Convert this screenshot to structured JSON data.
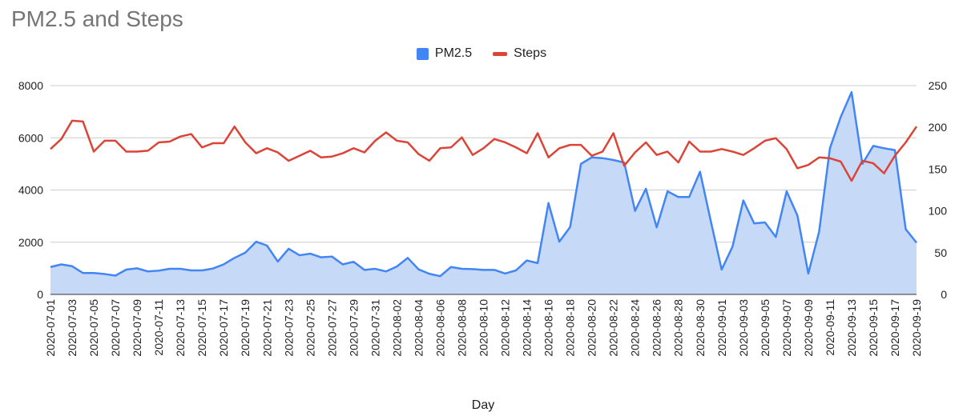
{
  "chart_data": {
    "type": "area+line",
    "title": "PM2.5 and Steps",
    "xlabel": "Day",
    "left_axis": {
      "min": 0,
      "max": 8000,
      "ticks": [
        0,
        2000,
        4000,
        6000,
        8000
      ]
    },
    "right_axis": {
      "min": 0,
      "max": 250,
      "ticks": [
        0,
        50,
        100,
        150,
        200,
        250
      ]
    },
    "grid": true,
    "legend_position": "top",
    "x": [
      "2020-07-01",
      "2020-07-02",
      "2020-07-03",
      "2020-07-04",
      "2020-07-05",
      "2020-07-06",
      "2020-07-07",
      "2020-07-08",
      "2020-07-09",
      "2020-07-10",
      "2020-07-11",
      "2020-07-12",
      "2020-07-13",
      "2020-07-14",
      "2020-07-15",
      "2020-07-16",
      "2020-07-17",
      "2020-07-18",
      "2020-07-19",
      "2020-07-20",
      "2020-07-21",
      "2020-07-22",
      "2020-07-23",
      "2020-07-24",
      "2020-07-25",
      "2020-07-26",
      "2020-07-27",
      "2020-07-28",
      "2020-07-29",
      "2020-07-30",
      "2020-07-31",
      "2020-08-01",
      "2020-08-02",
      "2020-08-03",
      "2020-08-04",
      "2020-08-05",
      "2020-08-06",
      "2020-08-07",
      "2020-08-08",
      "2020-08-09",
      "2020-08-10",
      "2020-08-11",
      "2020-08-12",
      "2020-08-13",
      "2020-08-14",
      "2020-08-15",
      "2020-08-16",
      "2020-08-17",
      "2020-08-18",
      "2020-08-19",
      "2020-08-20",
      "2020-08-21",
      "2020-08-22",
      "2020-08-23",
      "2020-08-24",
      "2020-08-25",
      "2020-08-26",
      "2020-08-27",
      "2020-08-28",
      "2020-08-29",
      "2020-08-30",
      "2020-08-31",
      "2020-09-01",
      "2020-09-02",
      "2020-09-03",
      "2020-09-04",
      "2020-09-05",
      "2020-09-06",
      "2020-09-07",
      "2020-09-08",
      "2020-09-09",
      "2020-09-10",
      "2020-09-11",
      "2020-09-12",
      "2020-09-13",
      "2020-09-14",
      "2020-09-15",
      "2020-09-16",
      "2020-09-17",
      "2020-09-18",
      "2020-09-19"
    ],
    "x_tick_labels": [
      "2020-07-01",
      "2020-07-03",
      "2020-07-05",
      "2020-07-07",
      "2020-07-09",
      "2020-07-11",
      "2020-07-13",
      "2020-07-15",
      "2020-07-17",
      "2020-07-19",
      "2020-07-21",
      "2020-07-23",
      "2020-07-25",
      "2020-07-27",
      "2020-07-29",
      "2020-07-31",
      "2020-08-02",
      "2020-08-04",
      "2020-08-06",
      "2020-08-08",
      "2020-08-10",
      "2020-08-12",
      "2020-08-14",
      "2020-08-16",
      "2020-08-18",
      "2020-08-20",
      "2020-08-22",
      "2020-08-24",
      "2020-08-26",
      "2020-08-28",
      "2020-08-30",
      "2020-09-01",
      "2020-09-03",
      "2020-09-05",
      "2020-09-07",
      "2020-09-09",
      "2020-09-11",
      "2020-09-13",
      "2020-09-15",
      "2020-09-17",
      "2020-09-19"
    ],
    "series": [
      {
        "name": "PM2.5",
        "kind": "area",
        "axis": "left",
        "color": "#4285f4",
        "fill": "#c6d9f7",
        "values": [
          1050,
          1150,
          1080,
          820,
          820,
          780,
          720,
          950,
          1000,
          880,
          910,
          980,
          980,
          920,
          920,
          990,
          1150,
          1400,
          1600,
          2020,
          1870,
          1260,
          1750,
          1500,
          1560,
          1420,
          1450,
          1150,
          1250,
          940,
          980,
          880,
          1070,
          1400,
          960,
          790,
          700,
          1050,
          980,
          970,
          940,
          940,
          800,
          920,
          1300,
          1200,
          3500,
          2020,
          2580,
          5000,
          5250,
          5220,
          5150,
          5050,
          3200,
          4050,
          2570,
          3950,
          3730,
          3730,
          4700,
          2800,
          950,
          1830,
          3600,
          2720,
          2760,
          2200,
          3950,
          3020,
          800,
          2400,
          5600,
          6800,
          7750,
          5000,
          5690,
          5600,
          5530,
          2500,
          1980
        ]
      },
      {
        "name": "Steps",
        "kind": "line",
        "axis": "right",
        "color": "#db4437",
        "values": [
          174,
          186,
          208,
          207,
          171,
          184,
          184,
          171,
          171,
          172,
          182,
          183,
          189,
          192,
          176,
          181,
          181,
          201,
          182,
          169,
          175,
          170,
          160,
          166,
          172,
          164,
          165,
          169,
          175,
          170,
          184,
          194,
          184,
          182,
          168,
          160,
          175,
          176,
          188,
          167,
          175,
          186,
          182,
          176,
          169,
          193,
          164,
          175,
          179,
          179,
          166,
          171,
          193,
          154,
          170,
          182,
          167,
          171,
          158,
          183,
          171,
          171,
          174,
          171,
          167,
          175,
          184,
          187,
          174,
          151,
          155,
          164,
          163,
          159,
          136,
          160,
          157,
          145,
          166,
          182,
          201
        ]
      }
    ]
  }
}
